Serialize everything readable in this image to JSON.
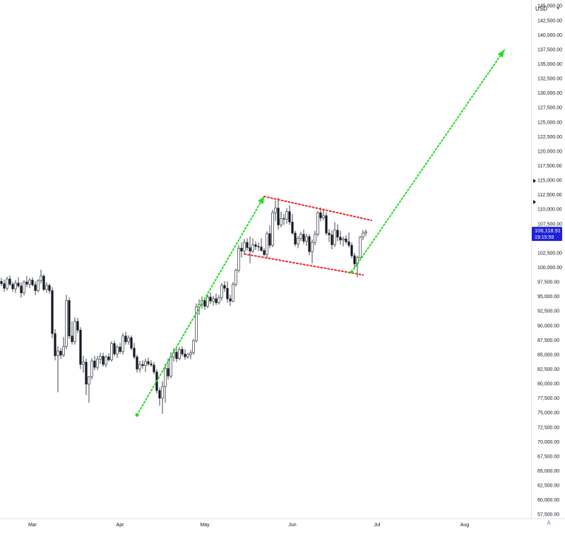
{
  "currency": "USD",
  "auto_label": "A",
  "last_price": "106,118.91",
  "countdown": "19:15:59",
  "colors": {
    "up": "#ffffff",
    "down": "#131722",
    "wick": "#131722",
    "axis_text": "#131722",
    "grid_line": "#e0e3eb",
    "arrow": "#22dd22",
    "channel": "#ee2222",
    "price_tag": "#1e22d8"
  },
  "chart_data": {
    "type": "candlestick",
    "xlabels": [
      "Mar",
      "Apr",
      "May",
      "Jun",
      "Jul",
      "Aug"
    ],
    "ylim": [
      56800,
      146000
    ],
    "yticks": [
      57500,
      60000,
      62500,
      65000,
      67500,
      70000,
      72500,
      75000,
      77500,
      80000,
      82500,
      85000,
      87500,
      90000,
      92500,
      95000,
      97500,
      100000,
      102500,
      105000,
      107500,
      110000,
      112500,
      115000,
      117500,
      120000,
      122500,
      125000,
      127500,
      130000,
      132500,
      135000,
      137500,
      140000,
      142500,
      145000
    ],
    "candles": [
      {
        "o": 97600,
        "h": 98200,
        "l": 96800,
        "c": 97200
      },
      {
        "o": 97200,
        "h": 97900,
        "l": 95800,
        "c": 96400
      },
      {
        "o": 96400,
        "h": 98400,
        "l": 96000,
        "c": 98000
      },
      {
        "o": 98000,
        "h": 98600,
        "l": 96800,
        "c": 97100
      },
      {
        "o": 97100,
        "h": 97500,
        "l": 95800,
        "c": 96300
      },
      {
        "o": 96300,
        "h": 97800,
        "l": 95600,
        "c": 97300
      },
      {
        "o": 97300,
        "h": 98300,
        "l": 96500,
        "c": 96800
      },
      {
        "o": 96800,
        "h": 97400,
        "l": 94800,
        "c": 95600
      },
      {
        "o": 95600,
        "h": 97800,
        "l": 95200,
        "c": 97500
      },
      {
        "o": 97500,
        "h": 98500,
        "l": 96600,
        "c": 97100
      },
      {
        "o": 97100,
        "h": 98200,
        "l": 96400,
        "c": 97800
      },
      {
        "o": 97800,
        "h": 98300,
        "l": 96700,
        "c": 97000
      },
      {
        "o": 97000,
        "h": 97600,
        "l": 95200,
        "c": 96000
      },
      {
        "o": 96000,
        "h": 98000,
        "l": 95700,
        "c": 97700
      },
      {
        "o": 97700,
        "h": 99600,
        "l": 97200,
        "c": 98500
      },
      {
        "o": 98500,
        "h": 98800,
        "l": 95900,
        "c": 96200
      },
      {
        "o": 96200,
        "h": 97400,
        "l": 95600,
        "c": 96900
      },
      {
        "o": 96900,
        "h": 97200,
        "l": 95500,
        "c": 96000
      },
      {
        "o": 96000,
        "h": 96600,
        "l": 87800,
        "c": 88600
      },
      {
        "o": 88600,
        "h": 89400,
        "l": 84000,
        "c": 84800
      },
      {
        "o": 84800,
        "h": 86400,
        "l": 78500,
        "c": 85600
      },
      {
        "o": 85600,
        "h": 86100,
        "l": 84300,
        "c": 84900
      },
      {
        "o": 84900,
        "h": 88000,
        "l": 84600,
        "c": 86400
      },
      {
        "o": 86400,
        "h": 95300,
        "l": 85900,
        "c": 94300
      },
      {
        "o": 94300,
        "h": 94800,
        "l": 87700,
        "c": 88200
      },
      {
        "o": 88200,
        "h": 90700,
        "l": 86700,
        "c": 87200
      },
      {
        "o": 87200,
        "h": 91400,
        "l": 86700,
        "c": 90700
      },
      {
        "o": 90700,
        "h": 91300,
        "l": 88700,
        "c": 89200
      },
      {
        "o": 89200,
        "h": 89700,
        "l": 82500,
        "c": 83300
      },
      {
        "o": 83300,
        "h": 84800,
        "l": 81900,
        "c": 83700
      },
      {
        "o": 83700,
        "h": 84300,
        "l": 78000,
        "c": 79900
      },
      {
        "o": 79900,
        "h": 81300,
        "l": 76700,
        "c": 81200
      },
      {
        "o": 81200,
        "h": 84400,
        "l": 80700,
        "c": 83900
      },
      {
        "o": 83900,
        "h": 84800,
        "l": 82300,
        "c": 82800
      },
      {
        "o": 82800,
        "h": 84800,
        "l": 82300,
        "c": 84200
      },
      {
        "o": 84200,
        "h": 85300,
        "l": 83400,
        "c": 84700
      },
      {
        "o": 84700,
        "h": 85300,
        "l": 82900,
        "c": 83300
      },
      {
        "o": 83300,
        "h": 84900,
        "l": 82800,
        "c": 84600
      },
      {
        "o": 84600,
        "h": 85200,
        "l": 83800,
        "c": 84100
      },
      {
        "o": 84100,
        "h": 87300,
        "l": 83800,
        "c": 86900
      },
      {
        "o": 86900,
        "h": 87400,
        "l": 84700,
        "c": 85100
      },
      {
        "o": 85100,
        "h": 86700,
        "l": 84400,
        "c": 86300
      },
      {
        "o": 86300,
        "h": 87000,
        "l": 85100,
        "c": 85500
      },
      {
        "o": 85500,
        "h": 88700,
        "l": 85000,
        "c": 88200
      },
      {
        "o": 88200,
        "h": 88900,
        "l": 86700,
        "c": 87200
      },
      {
        "o": 87200,
        "h": 88300,
        "l": 86700,
        "c": 87900
      },
      {
        "o": 87900,
        "h": 88300,
        "l": 85700,
        "c": 86100
      },
      {
        "o": 86100,
        "h": 87000,
        "l": 84200,
        "c": 84600
      },
      {
        "o": 84600,
        "h": 85000,
        "l": 81900,
        "c": 82500
      },
      {
        "o": 82500,
        "h": 83900,
        "l": 81900,
        "c": 83300
      },
      {
        "o": 83300,
        "h": 84000,
        "l": 82600,
        "c": 83100
      },
      {
        "o": 83100,
        "h": 84300,
        "l": 82000,
        "c": 83800
      },
      {
        "o": 83800,
        "h": 84500,
        "l": 83000,
        "c": 83400
      },
      {
        "o": 83400,
        "h": 84000,
        "l": 82900,
        "c": 83200
      },
      {
        "o": 83200,
        "h": 83700,
        "l": 81600,
        "c": 82000
      },
      {
        "o": 82000,
        "h": 82500,
        "l": 78300,
        "c": 78800
      },
      {
        "o": 78800,
        "h": 79300,
        "l": 76200,
        "c": 77500
      },
      {
        "o": 77500,
        "h": 80400,
        "l": 74800,
        "c": 79500
      },
      {
        "o": 79500,
        "h": 83400,
        "l": 76700,
        "c": 82600
      },
      {
        "o": 82600,
        "h": 84300,
        "l": 80700,
        "c": 81300
      },
      {
        "o": 81300,
        "h": 85400,
        "l": 80900,
        "c": 84600
      },
      {
        "o": 84600,
        "h": 86100,
        "l": 83800,
        "c": 85400
      },
      {
        "o": 85400,
        "h": 86300,
        "l": 83700,
        "c": 84300
      },
      {
        "o": 84300,
        "h": 86300,
        "l": 84000,
        "c": 85900
      },
      {
        "o": 85900,
        "h": 86400,
        "l": 84700,
        "c": 85100
      },
      {
        "o": 85100,
        "h": 85900,
        "l": 84100,
        "c": 84600
      },
      {
        "o": 84600,
        "h": 85300,
        "l": 84300,
        "c": 85000
      },
      {
        "o": 85000,
        "h": 85800,
        "l": 84200,
        "c": 85300
      },
      {
        "o": 85300,
        "h": 87700,
        "l": 85000,
        "c": 87400
      },
      {
        "o": 87400,
        "h": 93800,
        "l": 87100,
        "c": 93200
      },
      {
        "o": 93200,
        "h": 94500,
        "l": 91800,
        "c": 93600
      },
      {
        "o": 93600,
        "h": 95000,
        "l": 92900,
        "c": 94300
      },
      {
        "o": 94300,
        "h": 94800,
        "l": 92700,
        "c": 93300
      },
      {
        "o": 93300,
        "h": 95300,
        "l": 93000,
        "c": 94900
      },
      {
        "o": 94900,
        "h": 95700,
        "l": 93700,
        "c": 94200
      },
      {
        "o": 94200,
        "h": 95100,
        "l": 93400,
        "c": 94600
      },
      {
        "o": 94600,
        "h": 95500,
        "l": 93500,
        "c": 93900
      },
      {
        "o": 93900,
        "h": 95300,
        "l": 93600,
        "c": 94800
      },
      {
        "o": 94800,
        "h": 97300,
        "l": 94300,
        "c": 96900
      },
      {
        "o": 96900,
        "h": 97600,
        "l": 95800,
        "c": 96400
      },
      {
        "o": 96400,
        "h": 97600,
        "l": 93900,
        "c": 94600
      },
      {
        "o": 94600,
        "h": 95300,
        "l": 93400,
        "c": 94200
      },
      {
        "o": 94200,
        "h": 97500,
        "l": 94000,
        "c": 97100
      },
      {
        "o": 97100,
        "h": 99800,
        "l": 96700,
        "c": 99500
      },
      {
        "o": 99500,
        "h": 103800,
        "l": 99100,
        "c": 103300
      },
      {
        "o": 103300,
        "h": 104300,
        "l": 101700,
        "c": 102800
      },
      {
        "o": 102800,
        "h": 104900,
        "l": 102200,
        "c": 104300
      },
      {
        "o": 104300,
        "h": 105000,
        "l": 102900,
        "c": 103400
      },
      {
        "o": 103400,
        "h": 105300,
        "l": 100700,
        "c": 102800
      },
      {
        "o": 102800,
        "h": 105000,
        "l": 102500,
        "c": 103900
      },
      {
        "o": 103900,
        "h": 104500,
        "l": 103000,
        "c": 103600
      },
      {
        "o": 103600,
        "h": 104300,
        "l": 102800,
        "c": 103500
      },
      {
        "o": 103500,
        "h": 105000,
        "l": 102700,
        "c": 102900
      },
      {
        "o": 102900,
        "h": 103300,
        "l": 101900,
        "c": 102200
      },
      {
        "o": 102200,
        "h": 106200,
        "l": 101700,
        "c": 105800
      },
      {
        "o": 105800,
        "h": 107200,
        "l": 103300,
        "c": 103800
      },
      {
        "o": 103800,
        "h": 109900,
        "l": 103500,
        "c": 109400
      },
      {
        "o": 109400,
        "h": 111500,
        "l": 108000,
        "c": 110200
      },
      {
        "o": 110200,
        "h": 112000,
        "l": 106500,
        "c": 107300
      },
      {
        "o": 107300,
        "h": 109600,
        "l": 106900,
        "c": 108400
      },
      {
        "o": 108400,
        "h": 109200,
        "l": 107300,
        "c": 108300
      },
      {
        "o": 108300,
        "h": 110200,
        "l": 107500,
        "c": 109600
      },
      {
        "o": 109600,
        "h": 110700,
        "l": 107300,
        "c": 107800
      },
      {
        "o": 107800,
        "h": 109200,
        "l": 105600,
        "c": 105900
      },
      {
        "o": 105900,
        "h": 106300,
        "l": 103600,
        "c": 104000
      },
      {
        "o": 104000,
        "h": 105400,
        "l": 103300,
        "c": 105000
      },
      {
        "o": 105000,
        "h": 106100,
        "l": 104500,
        "c": 105700
      },
      {
        "o": 105700,
        "h": 106500,
        "l": 104000,
        "c": 104500
      },
      {
        "o": 104500,
        "h": 105800,
        "l": 103700,
        "c": 105300
      },
      {
        "o": 105300,
        "h": 105700,
        "l": 102100,
        "c": 102700
      },
      {
        "o": 102700,
        "h": 104800,
        "l": 100700,
        "c": 104300
      },
      {
        "o": 104300,
        "h": 106300,
        "l": 103800,
        "c": 105700
      },
      {
        "o": 105700,
        "h": 109700,
        "l": 105300,
        "c": 109400
      },
      {
        "o": 109400,
        "h": 110300,
        "l": 107900,
        "c": 108500
      },
      {
        "o": 108500,
        "h": 110100,
        "l": 108100,
        "c": 108900
      },
      {
        "o": 108900,
        "h": 109500,
        "l": 105500,
        "c": 105900
      },
      {
        "o": 105900,
        "h": 106600,
        "l": 104400,
        "c": 105600
      },
      {
        "o": 105600,
        "h": 106400,
        "l": 103100,
        "c": 103900
      },
      {
        "o": 103900,
        "h": 107800,
        "l": 103500,
        "c": 106400
      },
      {
        "o": 106400,
        "h": 107400,
        "l": 104500,
        "c": 105200
      },
      {
        "o": 105200,
        "h": 106300,
        "l": 103900,
        "c": 104700
      },
      {
        "o": 104700,
        "h": 105300,
        "l": 103600,
        "c": 104900
      },
      {
        "o": 104900,
        "h": 105500,
        "l": 104000,
        "c": 104400
      },
      {
        "o": 104400,
        "h": 106000,
        "l": 103400,
        "c": 103800
      },
      {
        "o": 103800,
        "h": 104300,
        "l": 101600,
        "c": 102000
      },
      {
        "o": 102000,
        "h": 102500,
        "l": 99700,
        "c": 100600
      },
      {
        "o": 100600,
        "h": 102000,
        "l": 98300,
        "c": 101700
      },
      {
        "o": 101700,
        "h": 105400,
        "l": 101400,
        "c": 105200
      },
      {
        "o": 105200,
        "h": 106400,
        "l": 104700,
        "c": 105900
      },
      {
        "o": 105900,
        "h": 106500,
        "l": 105400,
        "c": 106120
      }
    ],
    "drawings": {
      "up_arrow_1": {
        "from": [
          "2025-04-07",
          74600
        ],
        "to": [
          "2025-05-22",
          112200
        ]
      },
      "up_arrow_2": {
        "from": [
          "2025-06-22",
          99200
        ],
        "to": [
          "2025-08-15",
          137400
        ]
      },
      "channel_top": {
        "from": [
          "2025-05-22",
          112200
        ],
        "to": [
          "2025-06-29",
          108100
        ]
      },
      "channel_bottom": {
        "from": [
          "2025-05-15",
          102300
        ],
        "to": [
          "2025-06-26",
          98700
        ]
      },
      "start_dot": {
        "at": [
          "2025-04-07",
          74600
        ]
      }
    }
  }
}
